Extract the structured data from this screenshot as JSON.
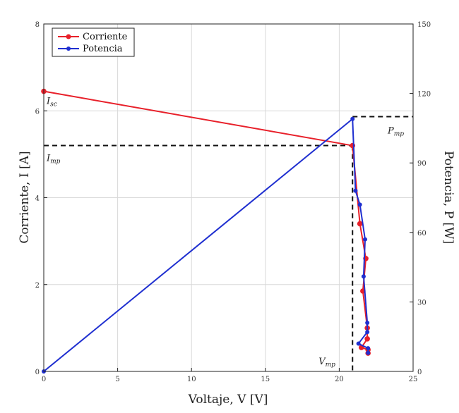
{
  "chart_data": {
    "type": "line",
    "xlabel": "Voltaje, V [V]",
    "ylabel_left": "Corriente, I [A]",
    "ylabel_right": "Potencia, P [W]",
    "xlim": [
      0,
      25
    ],
    "ylim_left": [
      0,
      8
    ],
    "ylim_right": [
      0,
      150
    ],
    "x_ticks": [
      "0",
      "5",
      "10",
      "15",
      "20",
      "25"
    ],
    "y_left_ticks": [
      "0",
      "2",
      "4",
      "6",
      "8"
    ],
    "y_right_ticks": [
      "0",
      "30",
      "60",
      "90",
      "120",
      "150"
    ],
    "grid": true,
    "legend": {
      "placement": "top-left",
      "entries": [
        "Corriente",
        "Potencia"
      ]
    },
    "series": [
      {
        "name": "Corriente",
        "axis": "left",
        "color": "#e8202a",
        "x": [
          0,
          20.9,
          21.4,
          21.8,
          21.6,
          21.9,
          21.9,
          21.5,
          21.95,
          21.95
        ],
        "y": [
          6.45,
          5.2,
          3.4,
          2.6,
          1.85,
          1.0,
          0.75,
          0.55,
          0.5,
          0.42
        ]
      },
      {
        "name": "Potencia",
        "axis": "right",
        "color": "#1f2fd0",
        "x": [
          0,
          20.9,
          21.1,
          21.4,
          21.75,
          21.65,
          21.9,
          21.9,
          21.3,
          21.95,
          21.95
        ],
        "y": [
          0,
          109,
          78,
          72,
          57,
          41,
          21,
          17,
          12,
          10,
          8
        ]
      }
    ],
    "annotations": [
      {
        "label": "I_sc",
        "main": "I",
        "sub": "sc"
      },
      {
        "label": "I_mp",
        "main": "I",
        "sub": "mp"
      },
      {
        "label": "P_mp",
        "main": "P",
        "sub": "mp"
      },
      {
        "label": "V_mp",
        "main": "V",
        "sub": "mp"
      }
    ],
    "reference_lines": {
      "imp_y": 5.2,
      "pmp_y": 110,
      "vmp_x": 20.9
    }
  }
}
